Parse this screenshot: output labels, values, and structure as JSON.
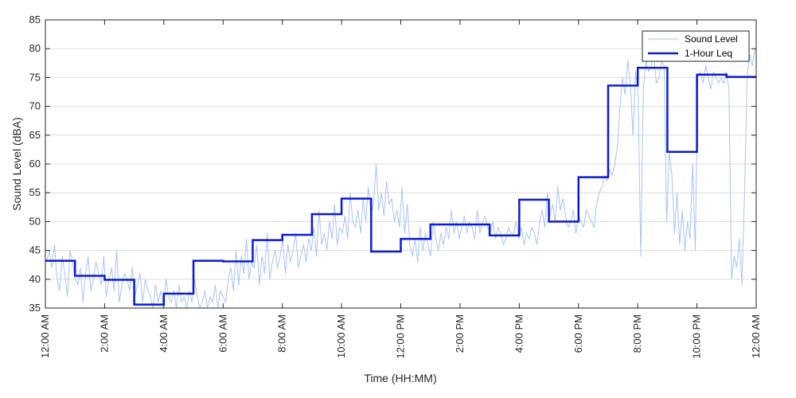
{
  "chart_data": {
    "type": "line",
    "title": "",
    "xlabel": "Time (HH:MM)",
    "ylabel": "Sound Level (dBA)",
    "xlim": [
      0,
      24
    ],
    "ylim": [
      35,
      85
    ],
    "y_ticks": [
      35,
      40,
      45,
      50,
      55,
      60,
      65,
      70,
      75,
      80,
      85
    ],
    "x_ticks": [
      {
        "hour": 0,
        "label": "12:00 AM"
      },
      {
        "hour": 2,
        "label": "2:00 AM"
      },
      {
        "hour": 4,
        "label": "4:00 AM"
      },
      {
        "hour": 6,
        "label": "6:00 AM"
      },
      {
        "hour": 8,
        "label": "8:00 AM"
      },
      {
        "hour": 10,
        "label": "10:00 AM"
      },
      {
        "hour": 12,
        "label": "12:00 PM"
      },
      {
        "hour": 14,
        "label": "2:00 PM"
      },
      {
        "hour": 16,
        "label": "4:00 PM"
      },
      {
        "hour": 18,
        "label": "6:00 PM"
      },
      {
        "hour": 20,
        "label": "8:00 PM"
      },
      {
        "hour": 22,
        "label": "10:00 PM"
      },
      {
        "hour": 24,
        "label": "12:00 AM"
      }
    ],
    "grid": "horizontal",
    "legend_position": "top-right",
    "series": [
      {
        "name": "Sound Level",
        "color": "#a9c4f5",
        "style": "thin line, dense per-minute samples",
        "values": [
          43,
          45,
          42,
          46,
          40,
          38,
          44,
          41,
          37,
          45,
          43,
          40,
          39,
          42,
          36,
          41,
          44,
          38,
          40,
          43,
          41,
          39,
          44,
          37,
          40,
          42,
          38,
          45,
          36,
          39,
          41,
          40,
          38,
          42,
          37,
          39,
          41,
          36,
          40,
          38,
          37,
          35,
          39,
          36,
          38,
          35,
          40,
          37,
          36,
          38,
          35,
          39,
          36,
          37,
          35,
          38,
          36,
          40,
          37,
          35,
          36,
          38,
          35,
          37,
          36,
          39,
          35,
          38,
          37,
          36,
          40,
          42,
          38,
          45,
          39,
          44,
          41,
          47,
          40,
          43,
          42,
          46,
          39,
          44,
          41,
          48,
          40,
          43,
          45,
          42,
          44,
          47,
          41,
          46,
          43,
          45,
          48,
          42,
          44,
          46,
          43,
          47,
          45,
          49,
          44,
          52,
          46,
          48,
          45,
          50,
          47,
          53,
          46,
          49,
          48,
          51,
          47,
          55,
          50,
          49,
          52,
          48,
          54,
          50,
          56,
          51,
          53,
          60,
          52,
          55,
          51,
          57,
          53,
          54,
          50,
          52,
          49,
          56,
          48,
          53,
          46,
          44,
          47,
          43,
          49,
          45,
          48,
          46,
          44,
          50,
          47,
          45,
          48,
          46,
          49,
          47,
          52,
          48,
          50,
          47,
          49,
          51,
          48,
          50,
          49,
          47,
          52,
          48,
          50,
          51,
          49,
          48,
          50,
          47,
          49,
          48,
          46,
          47,
          49,
          48,
          48,
          50,
          47,
          49,
          46,
          48,
          47,
          49,
          48,
          46,
          50,
          52,
          49,
          55,
          51,
          53,
          50,
          56,
          52,
          54,
          51,
          49,
          50,
          52,
          48,
          51,
          50,
          49,
          52,
          51,
          50,
          49,
          53,
          55,
          56,
          58,
          57,
          59,
          58,
          60,
          63,
          70,
          75,
          72,
          78,
          74,
          65,
          76,
          72,
          44,
          73,
          78,
          76,
          77,
          79,
          74,
          75,
          78,
          77,
          50,
          62,
          58,
          48,
          55,
          46,
          52,
          45,
          50,
          47,
          60,
          45,
          75,
          76,
          74,
          77,
          75,
          73,
          76,
          75,
          74,
          75,
          74,
          76,
          73,
          40,
          44,
          42,
          47,
          39,
          55,
          75,
          79,
          77,
          80
        ]
      },
      {
        "name": "1-Hour Leq",
        "color": "#0a1ad8",
        "style": "thick step line",
        "values": [
          43.2,
          40.6,
          39.9,
          35.6,
          37.5,
          43.2,
          43.1,
          46.8,
          47.7,
          51.3,
          54.0,
          44.8,
          47.0,
          49.5,
          49.5,
          47.6,
          53.8,
          50.0,
          57.7,
          73.6,
          76.7,
          62.1,
          75.5,
          75.1
        ]
      }
    ]
  }
}
